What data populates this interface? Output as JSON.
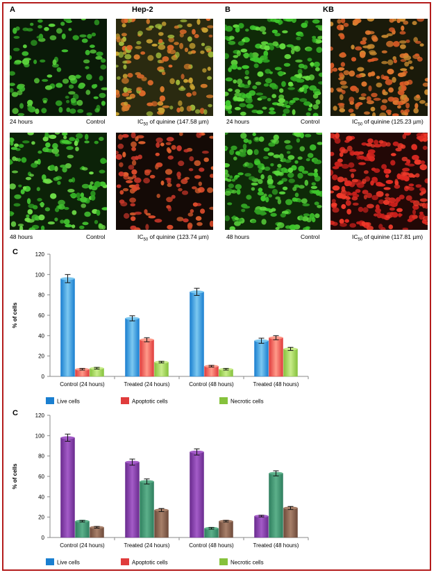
{
  "panels": {
    "a": {
      "letter": "A",
      "title": "Hep-2"
    },
    "b": {
      "letter": "B",
      "title": "KB"
    }
  },
  "micrographs": {
    "hep2_24": {
      "time": "24 hours",
      "control": "Control",
      "ic_prefix": "IC",
      "ic_sub": "50",
      "ic_text": " of quinine (147.58 µm)"
    },
    "hep2_48": {
      "time": "48 hours",
      "control": "Control",
      "ic_prefix": "IC",
      "ic_sub": "50",
      "ic_text": " of quinine (123.74 µm)"
    },
    "kb_24": {
      "time": "24 hours",
      "control": "Control",
      "ic_prefix": "IC",
      "ic_sub": "50",
      "ic_text": " of quinine (125.23 µm)"
    },
    "kb_48": {
      "time": "48 hours",
      "control": "Control",
      "ic_prefix": "IC",
      "ic_sub": "50",
      "ic_text": " of quinine (117.81 µm)"
    }
  },
  "colors": {
    "live": "#1a7fd0",
    "apoptotic": "#e03c3c",
    "necrotic": "#86c23c",
    "live2": "#6a2b8f",
    "apoptotic2": "#2f7f5f",
    "necrotic2": "#6e4a3a"
  },
  "chart_data": [
    {
      "type": "bar",
      "panel_label": "C",
      "ylabel": "% of cells",
      "ylim": [
        0,
        120
      ],
      "yticks": [
        0,
        20,
        40,
        60,
        80,
        100,
        120
      ],
      "categories": [
        "Control (24 hours)",
        "Treated (24 hours)",
        "Control (48 hours)",
        "Treated (48 hours)"
      ],
      "series": [
        {
          "name": "Live cells",
          "values": [
            96,
            57,
            83,
            35
          ],
          "errors": [
            4,
            2.5,
            3.5,
            2.5
          ]
        },
        {
          "name": "Apoptotic cells",
          "values": [
            7,
            36,
            10,
            38
          ],
          "errors": [
            0.8,
            2,
            0.8,
            2
          ]
        },
        {
          "name": "Necrotic cells",
          "values": [
            8,
            14,
            7,
            27
          ],
          "errors": [
            0.8,
            0.8,
            0.8,
            1.5
          ]
        }
      ],
      "legend_position": "bottom"
    },
    {
      "type": "bar",
      "panel_label": "C",
      "ylabel": "% of cells",
      "ylim": [
        0,
        120
      ],
      "yticks": [
        0,
        20,
        40,
        60,
        80,
        100,
        120
      ],
      "categories": [
        "Control (24 hours)",
        "Treated (24 hours)",
        "Control (48 hours)",
        "Treated (48 hours)"
      ],
      "series": [
        {
          "name": "Live cells",
          "values": [
            98,
            74,
            84,
            21
          ],
          "errors": [
            3.5,
            3,
            3,
            0.8
          ]
        },
        {
          "name": "Apoptotic cells",
          "values": [
            16,
            55,
            9,
            63
          ],
          "errors": [
            0.8,
            2.5,
            0.8,
            2.5
          ]
        },
        {
          "name": "Necrotic cells",
          "values": [
            10,
            27,
            16,
            29
          ],
          "errors": [
            0.8,
            1.5,
            0.8,
            1.5
          ]
        }
      ],
      "legend_position": "bottom"
    }
  ]
}
